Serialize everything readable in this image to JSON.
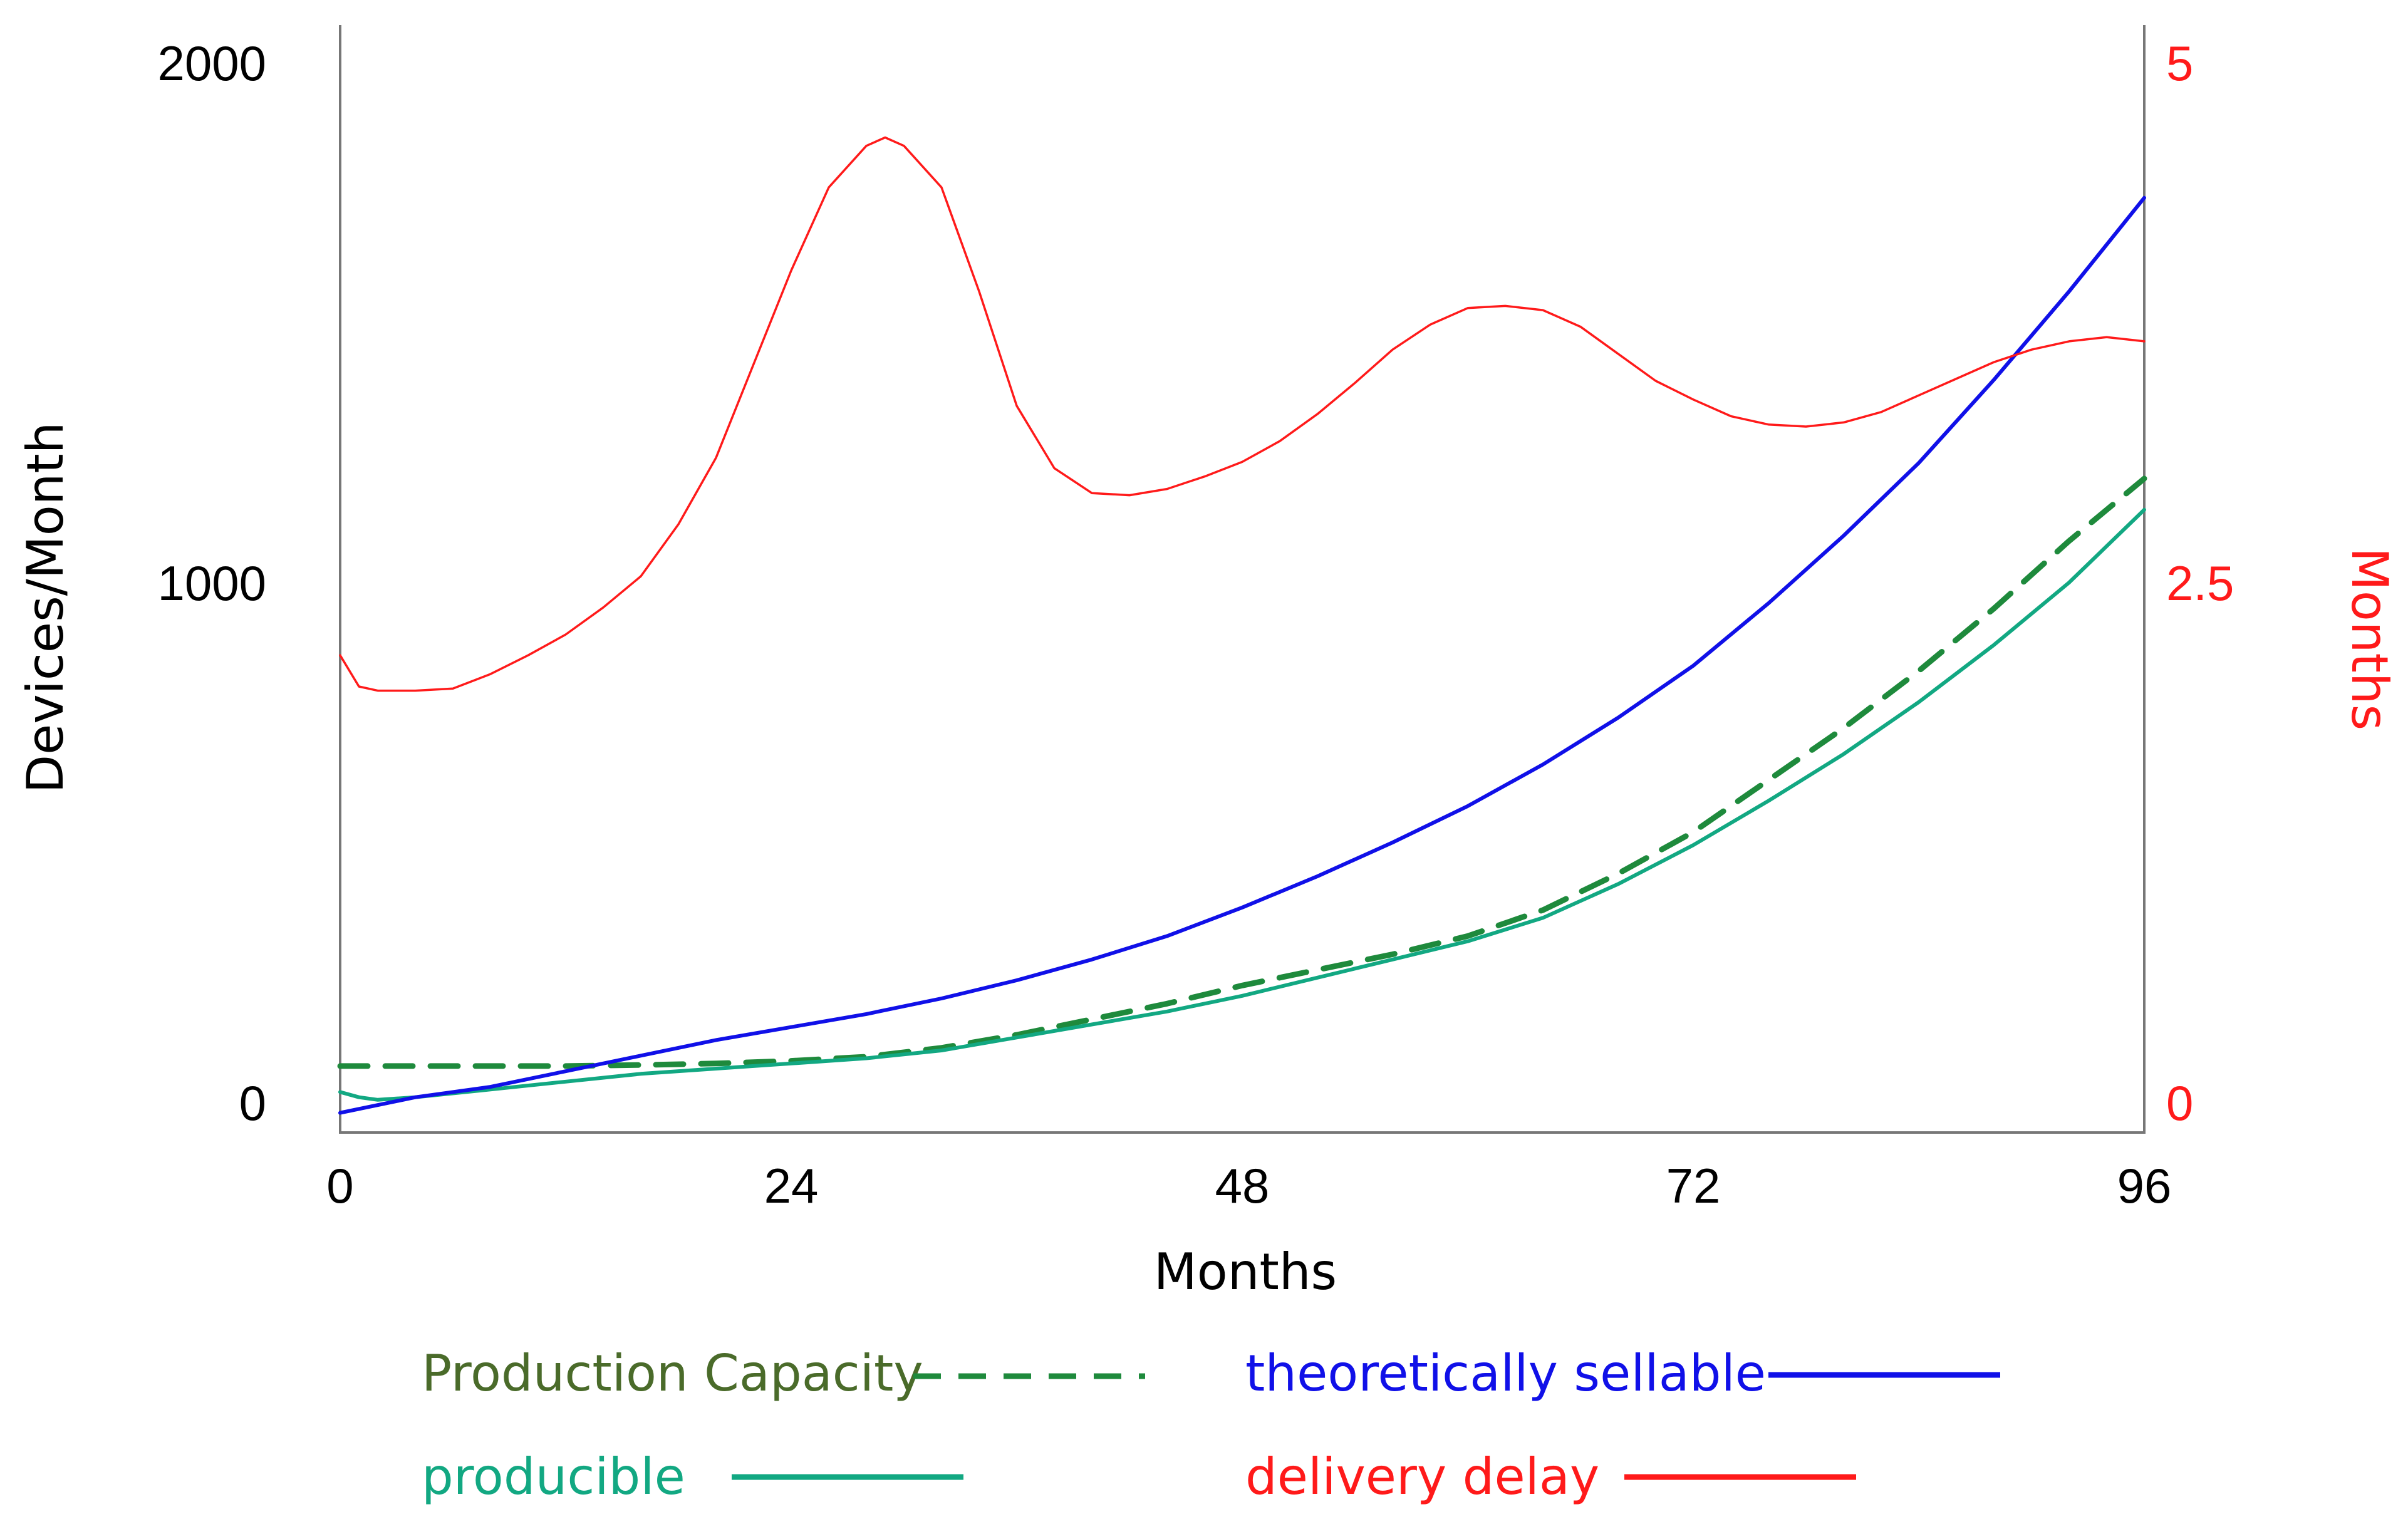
{
  "chart_data": {
    "type": "line",
    "title": "",
    "xlabel": "Months",
    "ylabel_left": "Devices/Month",
    "ylabel_right": "Months",
    "xlim": [
      0,
      96
    ],
    "ylim_left": [
      0,
      2000
    ],
    "ylim_right": [
      0,
      5
    ],
    "x_ticks": [
      "0",
      "24",
      "48",
      "72",
      "96"
    ],
    "y_left_ticks": [
      "0",
      "1000",
      "2000"
    ],
    "y_right_ticks": [
      "0",
      "2.5",
      "5"
    ],
    "colors": {
      "production_capacity": "#1e8a3c",
      "producible": "#12a882",
      "theoretically_sellable": "#1010e8",
      "delivery_delay": "#ff1a1a",
      "axis_right": "#ff1a1a",
      "legend_production_capacity_text": "#4a6b2a",
      "legend_producible_text": "#12a882",
      "legend_theoretically_sellable_text": "#1010e8",
      "legend_delivery_delay_text": "#ff1a1a"
    },
    "series": [
      {
        "name": "Production Capacity",
        "axis": "left",
        "style": "dashed",
        "x": [
          0,
          4,
          8,
          12,
          16,
          20,
          24,
          28,
          32,
          36,
          40,
          44,
          48,
          52,
          56,
          60,
          64,
          68,
          72,
          76,
          80,
          84,
          88,
          92,
          94,
          96
        ],
        "values": [
          70,
          70,
          70,
          70,
          72,
          75,
          80,
          88,
          105,
          130,
          160,
          190,
          225,
          255,
          285,
          320,
          370,
          440,
          520,
          620,
          720,
          830,
          950,
          1080,
          1140,
          1200
        ]
      },
      {
        "name": "producible",
        "axis": "left",
        "style": "solid",
        "x": [
          0,
          1,
          2,
          4,
          8,
          12,
          16,
          20,
          24,
          28,
          32,
          36,
          40,
          44,
          48,
          52,
          56,
          60,
          64,
          68,
          72,
          76,
          80,
          84,
          88,
          92,
          94,
          96
        ],
        "values": [
          20,
          10,
          5,
          10,
          25,
          40,
          55,
          65,
          75,
          85,
          100,
          125,
          150,
          175,
          205,
          240,
          275,
          310,
          355,
          420,
          495,
          580,
          670,
          770,
          880,
          1000,
          1070,
          1140
        ]
      },
      {
        "name": "theoretically sellable",
        "axis": "left",
        "style": "solid",
        "x": [
          0,
          4,
          8,
          12,
          16,
          20,
          24,
          28,
          32,
          36,
          40,
          44,
          48,
          52,
          56,
          60,
          64,
          68,
          72,
          76,
          80,
          84,
          88,
          92,
          96
        ],
        "values": [
          -20,
          10,
          30,
          60,
          90,
          120,
          145,
          170,
          200,
          235,
          275,
          320,
          375,
          435,
          500,
          570,
          650,
          740,
          840,
          960,
          1090,
          1230,
          1390,
          1560,
          1740
        ]
      },
      {
        "name": "delivery delay",
        "axis": "right",
        "style": "solid",
        "x": [
          0,
          1,
          2,
          4,
          6,
          8,
          10,
          12,
          14,
          16,
          18,
          20,
          22,
          24,
          26,
          28,
          29,
          30,
          32,
          34,
          36,
          38,
          40,
          42,
          44,
          46,
          48,
          50,
          52,
          54,
          56,
          58,
          60,
          62,
          64,
          66,
          68,
          70,
          72,
          74,
          76,
          78,
          80,
          82,
          84,
          86,
          88,
          90,
          92,
          94,
          96
        ],
        "values": [
          2.15,
          2.0,
          1.98,
          1.98,
          1.99,
          2.06,
          2.15,
          2.25,
          2.38,
          2.53,
          2.78,
          3.1,
          3.55,
          4.0,
          4.4,
          4.6,
          4.64,
          4.6,
          4.4,
          3.9,
          3.35,
          3.05,
          2.93,
          2.92,
          2.95,
          3.01,
          3.08,
          3.18,
          3.31,
          3.46,
          3.62,
          3.74,
          3.82,
          3.83,
          3.81,
          3.73,
          3.6,
          3.47,
          3.38,
          3.3,
          3.26,
          3.25,
          3.27,
          3.32,
          3.4,
          3.48,
          3.56,
          3.62,
          3.66,
          3.68,
          3.66
        ]
      }
    ],
    "legend": [
      {
        "label": "Production Capacity"
      },
      {
        "label": "theoretically sellable"
      },
      {
        "label": "producible"
      },
      {
        "label": "delivery delay"
      }
    ],
    "legend_position": "bottom",
    "grid": false
  }
}
